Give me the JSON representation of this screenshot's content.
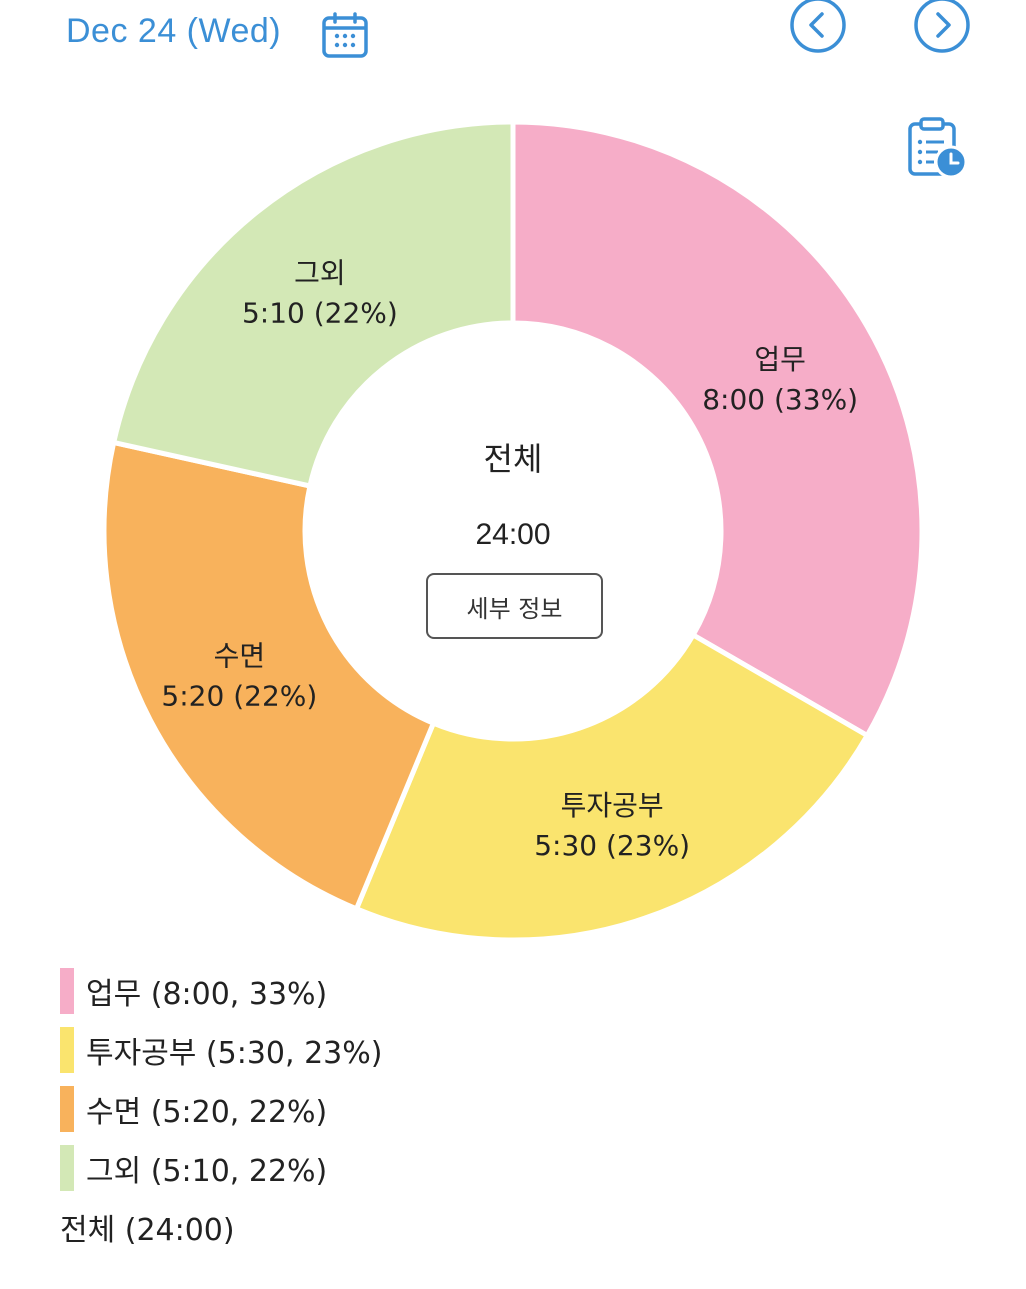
{
  "header": {
    "date": "Dec 24 (Wed)",
    "calendar_icon": "calendar-icon",
    "prev_icon": "chevron-left-icon",
    "next_icon": "chevron-right-icon",
    "history_icon": "clipboard-clock-icon"
  },
  "center": {
    "title": "전체",
    "total": "24:00",
    "detail_button": "세부 정보"
  },
  "chart_data": {
    "type": "pie",
    "categories": [
      "업무",
      "투자공부",
      "수면",
      "그외"
    ],
    "values": [
      8.0,
      5.5,
      5.3333,
      5.1667
    ],
    "durations": [
      "8:00",
      "5:30",
      "5:20",
      "5:10"
    ],
    "percents": [
      "33%",
      "23%",
      "22%",
      "22%"
    ],
    "slice_labels": [
      {
        "name": "업무",
        "value": "8:00 (33%)"
      },
      {
        "name": "투자공부",
        "value": "5:30 (23%)"
      },
      {
        "name": "수면",
        "value": "5:20 (22%)"
      },
      {
        "name": "그외",
        "value": "5:10 (22%)"
      }
    ],
    "colors": [
      "#f6adc8",
      "#fae46e",
      "#f8b25c",
      "#d3e8b6"
    ],
    "donut": true,
    "legend_position": "bottom-left"
  },
  "legend": {
    "items": [
      {
        "label": "업무 (8:00, 33%)",
        "color": "#f6adc8"
      },
      {
        "label": "투자공부 (5:30, 23%)",
        "color": "#fae46e"
      },
      {
        "label": "수면 (5:20, 22%)",
        "color": "#f8b25c"
      },
      {
        "label": "그외 (5:10, 22%)",
        "color": "#d3e8b6"
      }
    ],
    "total": "전체 (24:00)"
  },
  "colors": {
    "accent": "#3b8fd6"
  }
}
